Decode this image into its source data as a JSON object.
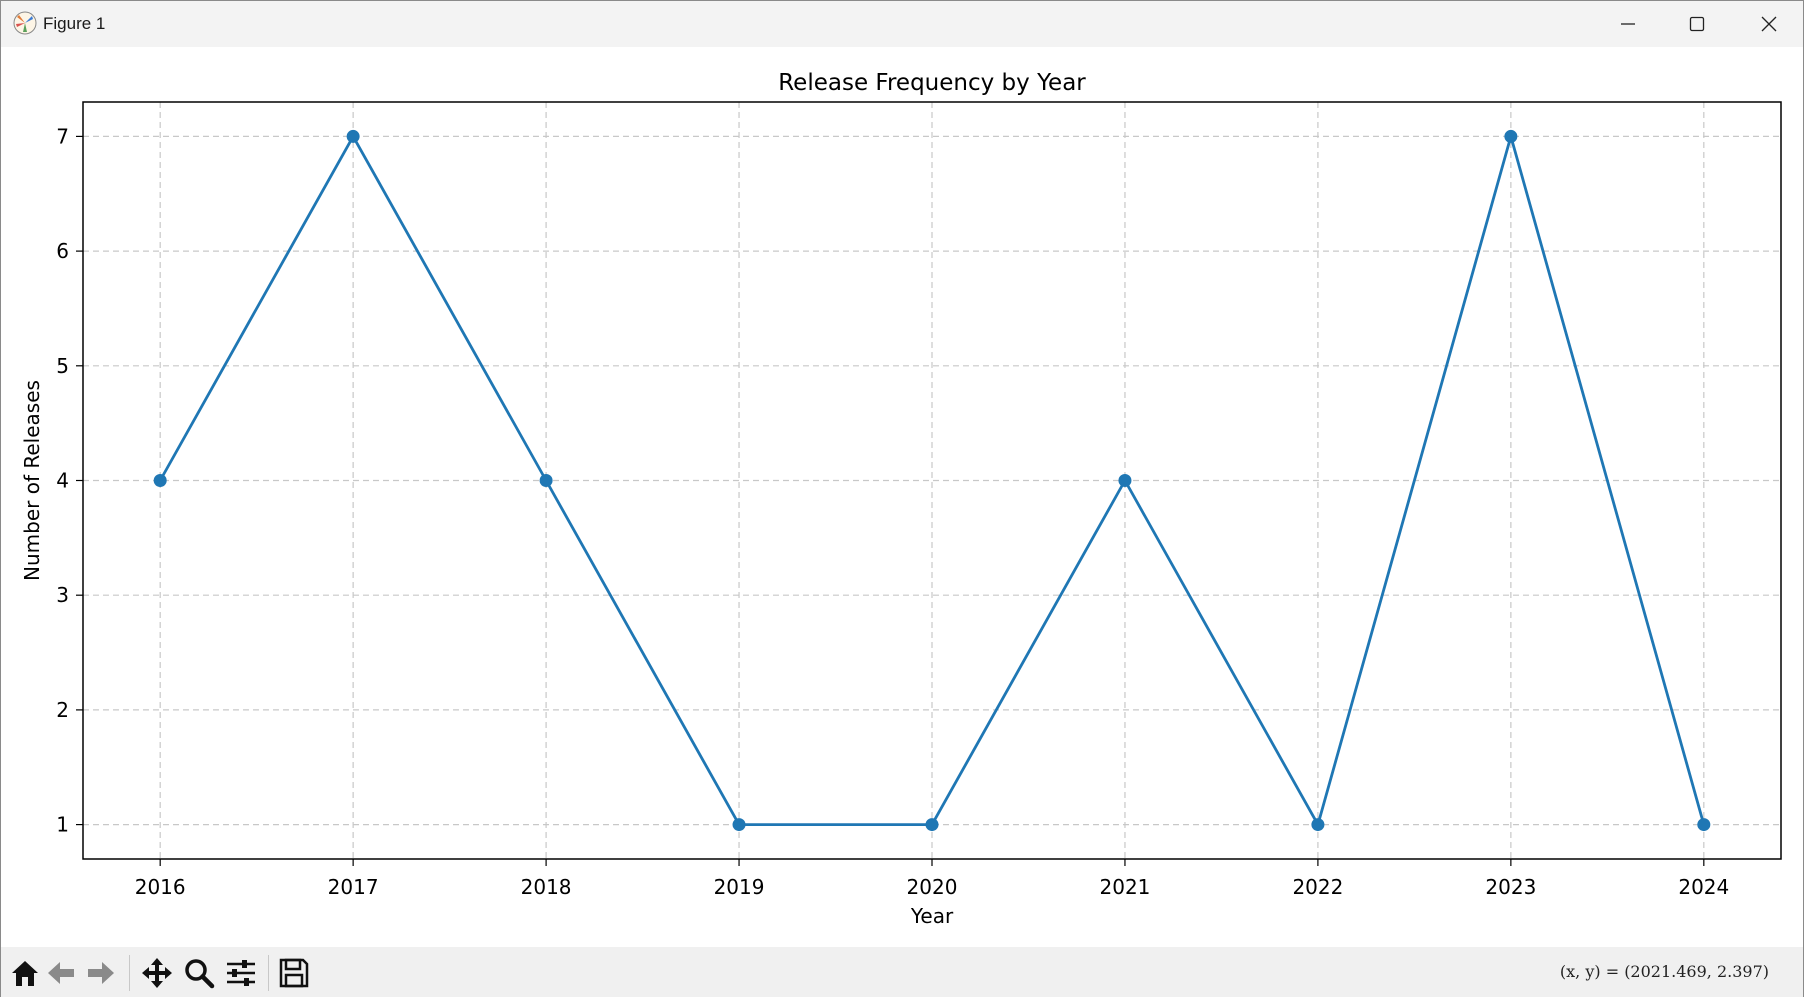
{
  "window": {
    "title": "Figure 1",
    "icons": {
      "app": "matplotlib-icon",
      "minimize": "minimize-icon",
      "maximize": "maximize-icon",
      "close": "close-icon"
    }
  },
  "toolbar": {
    "tools": [
      {
        "name": "home",
        "icon": "home-icon"
      },
      {
        "name": "back",
        "icon": "back-arrow-icon"
      },
      {
        "name": "forward",
        "icon": "forward-arrow-icon"
      },
      {
        "name": "pan",
        "icon": "move-icon"
      },
      {
        "name": "zoom",
        "icon": "zoom-icon"
      },
      {
        "name": "configure",
        "icon": "sliders-icon"
      },
      {
        "name": "save",
        "icon": "save-icon"
      }
    ],
    "coordinates": "(x, y) = (2021.469, 2.397)"
  },
  "colors": {
    "line": "#1f77b4",
    "grid": "#c8c8c8",
    "axes": "#000000"
  },
  "chart_data": {
    "type": "line",
    "title": "Release Frequency by Year",
    "xlabel": "Year",
    "ylabel": "Number of Releases",
    "x": [
      2016,
      2017,
      2018,
      2019,
      2020,
      2021,
      2022,
      2023,
      2024
    ],
    "series": [
      {
        "values": [
          4,
          7,
          4,
          1,
          1,
          4,
          1,
          7,
          1
        ],
        "marker": "circle"
      }
    ],
    "xticks": [
      "2016",
      "2017",
      "2018",
      "2019",
      "2020",
      "2021",
      "2022",
      "2023",
      "2024"
    ],
    "yticks": [
      1,
      2,
      3,
      4,
      5,
      6,
      7
    ],
    "xlim": [
      2015.6,
      2024.4
    ],
    "ylim": [
      0.7,
      7.3
    ],
    "grid": true,
    "grid_style": "dashed",
    "legend": "none"
  }
}
